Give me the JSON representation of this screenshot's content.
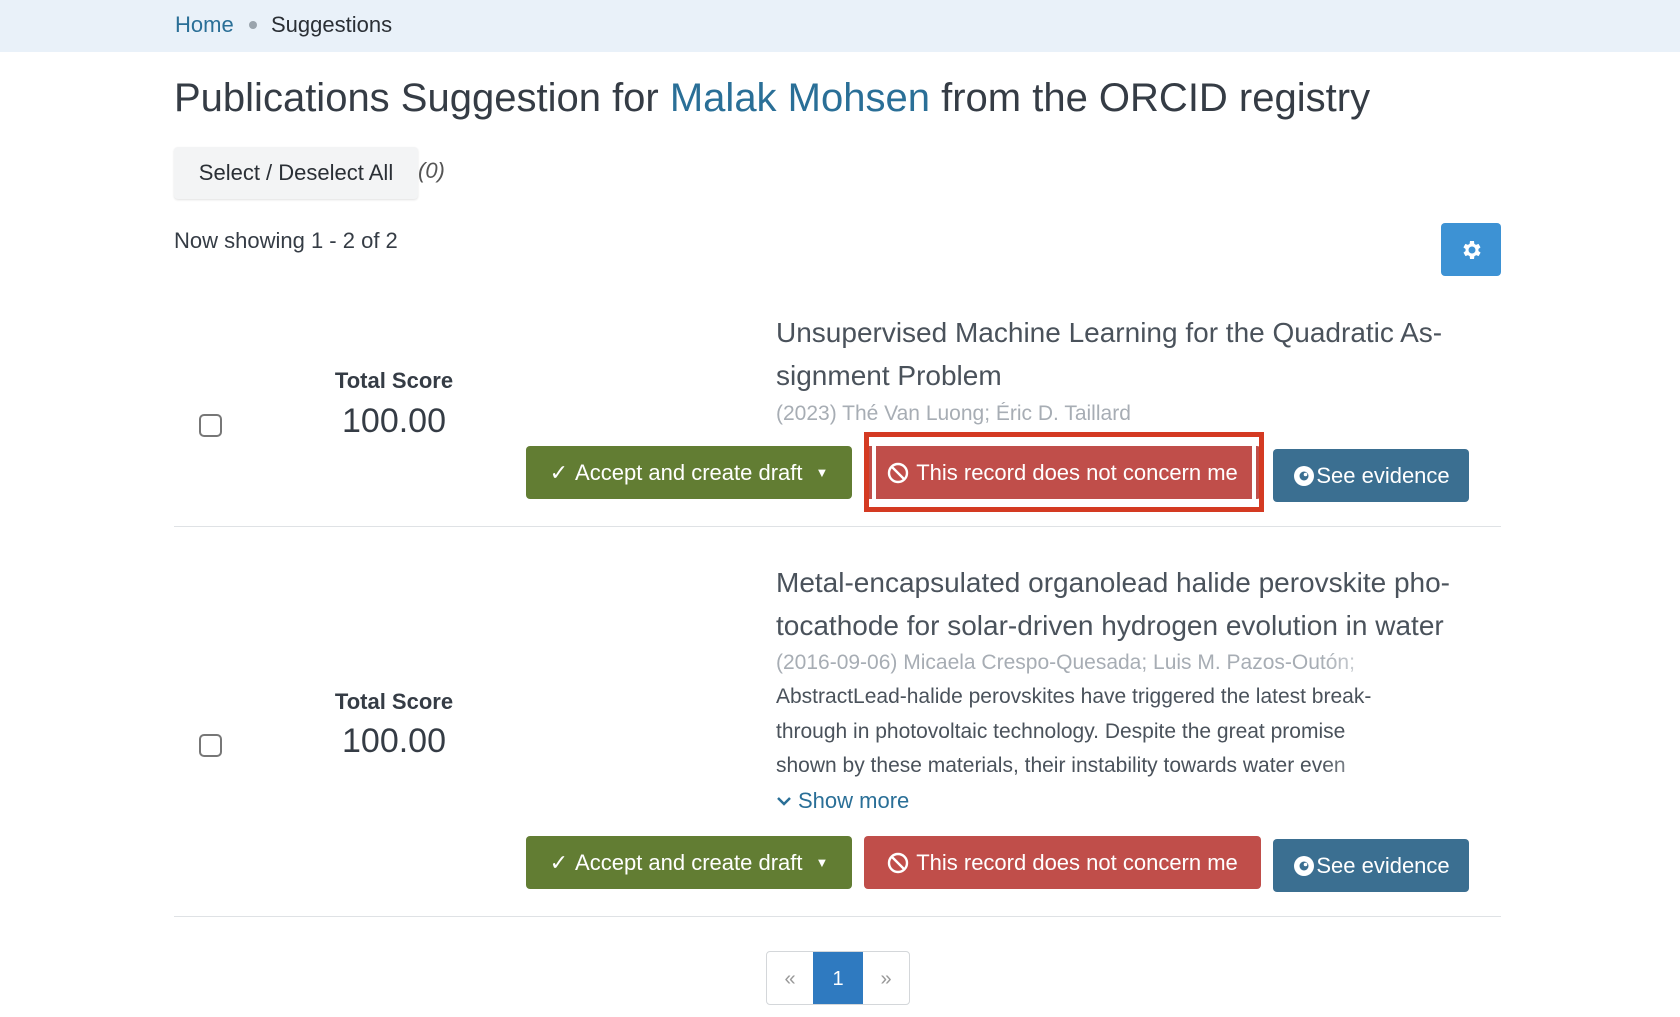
{
  "breadcrumb": {
    "home": "Home",
    "current": "Suggestions"
  },
  "page": {
    "title_prefix": "Publications Suggestion for ",
    "person": "Malak Mohsen",
    "title_suffix": " from the ORCID registry"
  },
  "selection": {
    "select_all_label": "Select / Deselect All",
    "count": "(0)"
  },
  "showing": "Now showing 1 - 2 of 2",
  "settings_icon": "gear-icon",
  "suggestions": [
    {
      "score_label": "Total Score",
      "score": "100.00",
      "title": "Unsupervised Machine Learning for the Quadratic As-signment Problem",
      "authors": "(2023) Thé Van Luong; Éric D. Taillard",
      "accept_label": "Accept and create draft",
      "reject_label": "This record does not concern me",
      "evidence_label": "See evidence"
    },
    {
      "score_label": "Total Score",
      "score": "100.00",
      "title": "Metal-encapsulated organolead halide perovskite pho-tocathode for solar-driven hydrogen evolution in water",
      "authors": "(2016-09-06) Micaela Crespo-Quesada; Luis M. Pazos-Outón;",
      "abstract_lines": [
        "AbstractLead-halide perovskites have triggered the latest break-",
        "through in photovoltaic technology. Despite the great promise",
        "shown by these materials, their instability towards water even"
      ],
      "show_more": "Show more",
      "accept_label": "Accept and create draft",
      "reject_label": "This record does not concern me",
      "evidence_label": "See evidence"
    }
  ],
  "pagination": {
    "prev": "«",
    "current": "1",
    "next": "»"
  },
  "colors": {
    "accept": "#627d33",
    "reject": "#c04e4a",
    "evidence": "#3b6f91",
    "highlight": "#d43a22",
    "link": "#2a6f97"
  }
}
